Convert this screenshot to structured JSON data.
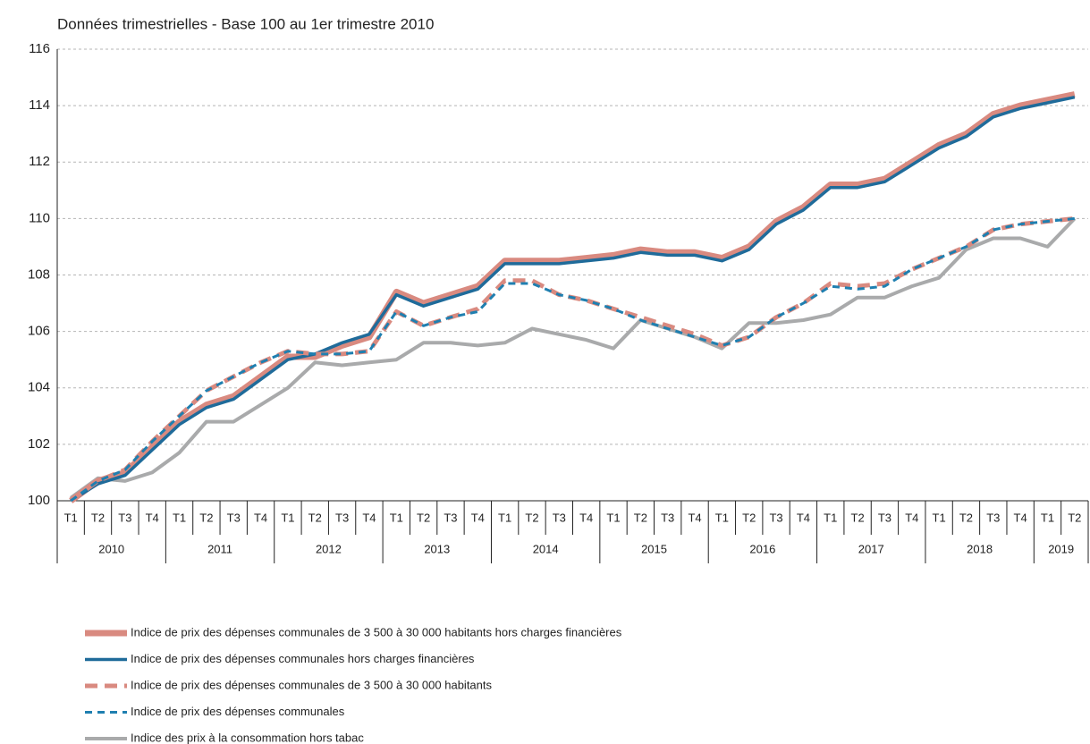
{
  "chart_data": {
    "type": "line",
    "title": "Données trimestrielles - Base 100 au 1er trimestre 2010",
    "categories": [
      "T1",
      "T2",
      "T3",
      "T4",
      "T1",
      "T2",
      "T3",
      "T4",
      "T1",
      "T2",
      "T3",
      "T4",
      "T1",
      "T2",
      "T3",
      "T4",
      "T1",
      "T2",
      "T3",
      "T4",
      "T1",
      "T2",
      "T3",
      "T4",
      "T1",
      "T2",
      "T3",
      "T4",
      "T1",
      "T2",
      "T3",
      "T4",
      "T1",
      "T2",
      "T3",
      "T4",
      "T1",
      "T2"
    ],
    "years": [
      "2010",
      "2011",
      "2012",
      "2013",
      "2014",
      "2015",
      "2016",
      "2017",
      "2018",
      "2019"
    ],
    "ylim": [
      100,
      116
    ],
    "yticks": [
      100,
      102,
      104,
      106,
      108,
      110,
      112,
      114,
      116
    ],
    "grid": true,
    "series": [
      {
        "name": "Indice de prix des dépenses communales de 3 500 à 30 000 habitants hors charges financières",
        "color": "#d98a80",
        "dashed": false,
        "values": [
          100.0,
          100.7,
          101.0,
          101.9,
          102.8,
          103.4,
          103.7,
          104.4,
          105.1,
          105.1,
          105.5,
          105.8,
          107.4,
          107.0,
          107.3,
          107.6,
          108.5,
          108.5,
          108.5,
          108.6,
          108.7,
          108.9,
          108.8,
          108.8,
          108.6,
          109.0,
          109.9,
          110.4,
          111.2,
          111.2,
          111.4,
          112.0,
          112.6,
          113.0,
          113.7,
          114.0,
          114.2,
          114.4
        ]
      },
      {
        "name": "Indice de prix des dépenses communales hors charges financières",
        "color": "#1f6b9a",
        "dashed": false,
        "values": [
          100.0,
          100.6,
          100.9,
          101.8,
          102.7,
          103.3,
          103.6,
          104.3,
          105.0,
          105.2,
          105.6,
          105.9,
          107.3,
          106.9,
          107.2,
          107.5,
          108.4,
          108.4,
          108.4,
          108.5,
          108.6,
          108.8,
          108.7,
          108.7,
          108.5,
          108.9,
          109.8,
          110.3,
          111.1,
          111.1,
          111.3,
          111.9,
          112.5,
          112.9,
          113.6,
          113.9,
          114.1,
          114.3
        ]
      },
      {
        "name": "Indice de prix des dépenses communales de 3 500 à 30 000 habitants",
        "color": "#d98a80",
        "dashed": true,
        "values": [
          100.0,
          100.7,
          101.1,
          102.1,
          103.0,
          103.9,
          104.4,
          104.9,
          105.3,
          105.2,
          105.2,
          105.3,
          106.7,
          106.2,
          106.5,
          106.8,
          107.8,
          107.8,
          107.3,
          107.1,
          106.8,
          106.5,
          106.2,
          105.9,
          105.5,
          105.8,
          106.5,
          107.0,
          107.7,
          107.6,
          107.7,
          108.2,
          108.6,
          109.0,
          109.6,
          109.8,
          109.9,
          110.0
        ]
      },
      {
        "name": "Indice de prix des dépenses communales",
        "color": "#1f7fb0",
        "dashed": true,
        "values": [
          100.0,
          100.7,
          101.1,
          102.1,
          103.0,
          103.9,
          104.4,
          104.9,
          105.3,
          105.2,
          105.2,
          105.3,
          106.7,
          106.2,
          106.5,
          106.7,
          107.7,
          107.7,
          107.3,
          107.1,
          106.8,
          106.4,
          106.1,
          105.8,
          105.5,
          105.8,
          106.5,
          107.0,
          107.6,
          107.5,
          107.6,
          108.2,
          108.6,
          109.0,
          109.6,
          109.8,
          109.9,
          110.0
        ]
      },
      {
        "name": "Indice des prix à la consommation hors tabac",
        "color": "#a9aaab",
        "dashed": false,
        "values": [
          100.1,
          100.8,
          100.7,
          101.0,
          101.7,
          102.8,
          102.8,
          103.4,
          104.0,
          104.9,
          104.8,
          104.9,
          105.0,
          105.6,
          105.6,
          105.5,
          105.6,
          106.1,
          105.9,
          105.7,
          105.4,
          106.4,
          106.1,
          105.8,
          105.4,
          106.3,
          106.3,
          106.4,
          106.6,
          107.2,
          107.2,
          107.6,
          107.9,
          108.9,
          109.3,
          109.3,
          109.0,
          110.0
        ]
      }
    ]
  }
}
